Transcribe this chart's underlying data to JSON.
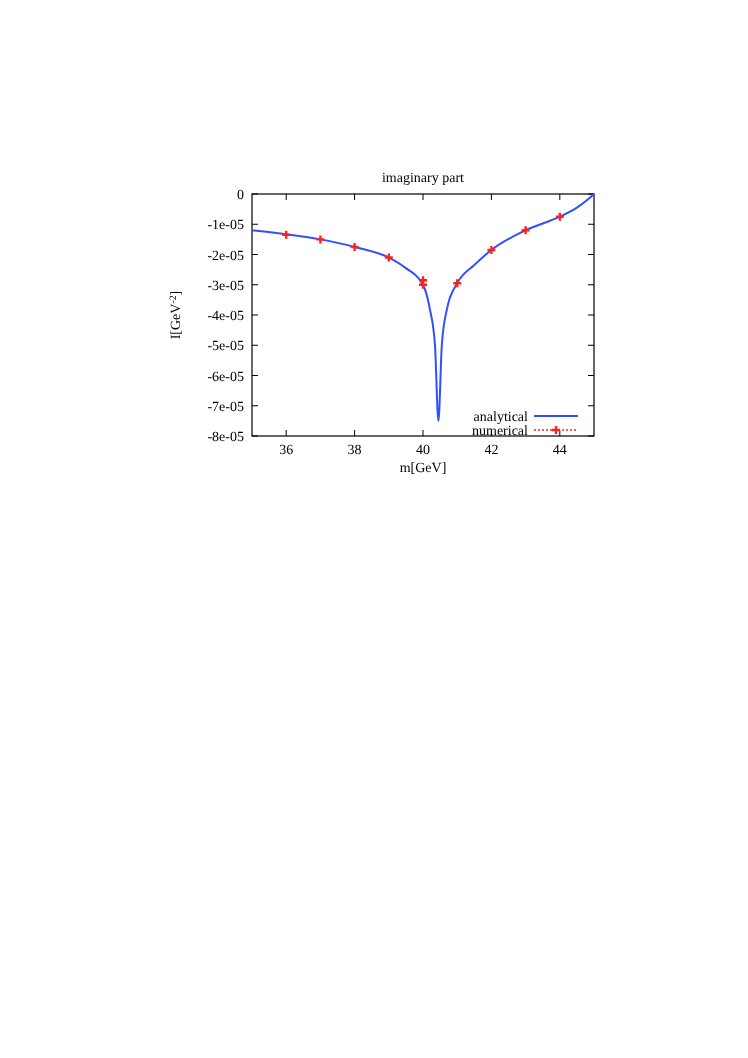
{
  "chart_data": {
    "type": "line",
    "title": "imaginary part",
    "xlabel": "m[GeV]",
    "ylabel": "I[GeV$^{-2}$]",
    "xlim": [
      35,
      45
    ],
    "xticks": [
      36,
      38,
      40,
      42,
      44
    ],
    "ylim": [
      -8e-05,
      0
    ],
    "yticks": [
      {
        "value": -8e-05,
        "label": "-8e-05"
      },
      {
        "value": -7e-05,
        "label": "-7e-05"
      },
      {
        "value": -6e-05,
        "label": "-6e-05"
      },
      {
        "value": -5e-05,
        "label": "-5e-05"
      },
      {
        "value": -4e-05,
        "label": "-4e-05"
      },
      {
        "value": -3e-05,
        "label": "-3e-05"
      },
      {
        "value": -2e-05,
        "label": "-2e-05"
      },
      {
        "value": -1e-05,
        "label": "-1e-05"
      },
      0
    ],
    "legend": "bottom right",
    "series": [
      {
        "name": "analytical",
        "color": "#3050ff",
        "x": [
          35,
          36,
          37,
          38,
          39,
          39.5,
          40,
          40.2,
          40.35,
          40.45,
          40.55,
          40.7,
          41,
          41.5,
          42,
          43,
          44,
          44.5,
          44.8,
          45
        ],
        "values": [
          -1.2e-05,
          -1.33e-05,
          -1.5e-05,
          -1.75e-05,
          -2.1e-05,
          -2.45e-05,
          -3e-05,
          -3.8e-05,
          -5e-05,
          -7.5e-05,
          -5e-05,
          -3.8e-05,
          -2.95e-05,
          -2.35e-05,
          -1.85e-05,
          -1.2e-05,
          -7.5e-06,
          -4.5e-06,
          -2e-06,
          0
        ]
      },
      {
        "name": "numerical",
        "type": "scatter",
        "color": "#ff2020",
        "marker": "cross",
        "x": [
          36,
          37,
          38,
          39,
          40,
          40,
          41,
          42,
          43,
          44
        ],
        "values": [
          -1.35e-05,
          -1.5e-05,
          -1.75e-05,
          -2.1e-05,
          -2.85e-05,
          -3e-05,
          -2.95e-05,
          -1.85e-05,
          -1.2e-05,
          -7.5e-06
        ]
      }
    ]
  }
}
